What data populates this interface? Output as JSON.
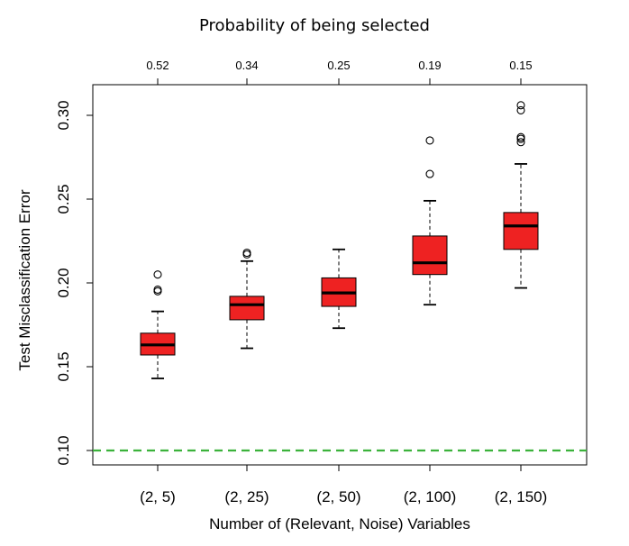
{
  "chart_data": {
    "type": "box",
    "title": "Probability of being selected",
    "xlabel": "Number of (Relevant, Noise) Variables",
    "ylabel": "Test Misclassification Error",
    "categories": [
      "(2, 5)",
      "(2, 25)",
      "(2, 50)",
      "(2, 100)",
      "(2, 150)"
    ],
    "top_axis_labels": [
      "0.52",
      "0.34",
      "0.25",
      "0.19",
      "0.15"
    ],
    "ylim": [
      0.092,
      0.322
    ],
    "yticks": [
      0.1,
      0.15,
      0.2,
      0.25,
      0.3
    ],
    "ytick_labels": [
      "0.10",
      "0.15",
      "0.20",
      "0.25",
      "0.30"
    ],
    "boxes": [
      {
        "category": "(2, 5)",
        "whisker_low": 0.143,
        "q1": 0.157,
        "median": 0.163,
        "q3": 0.17,
        "whisker_high": 0.183,
        "outliers": [
          0.195,
          0.196,
          0.205
        ]
      },
      {
        "category": "(2, 25)",
        "whisker_low": 0.161,
        "q1": 0.178,
        "median": 0.187,
        "q3": 0.192,
        "whisker_high": 0.213,
        "outliers": [
          0.217,
          0.218
        ]
      },
      {
        "category": "(2, 50)",
        "whisker_low": 0.173,
        "q1": 0.186,
        "median": 0.194,
        "q3": 0.203,
        "whisker_high": 0.22,
        "outliers": []
      },
      {
        "category": "(2, 100)",
        "whisker_low": 0.187,
        "q1": 0.205,
        "median": 0.212,
        "q3": 0.228,
        "whisker_high": 0.249,
        "outliers": [
          0.265,
          0.285
        ]
      },
      {
        "category": "(2, 150)",
        "whisker_low": 0.197,
        "q1": 0.22,
        "median": 0.234,
        "q3": 0.242,
        "whisker_high": 0.271,
        "outliers": [
          0.284,
          0.286,
          0.287,
          0.303,
          0.306
        ]
      }
    ],
    "reference_line": {
      "y": 0.1,
      "style": "dashed",
      "color": "#3bb23b"
    },
    "box_color": "#ee2222",
    "grid": false
  }
}
